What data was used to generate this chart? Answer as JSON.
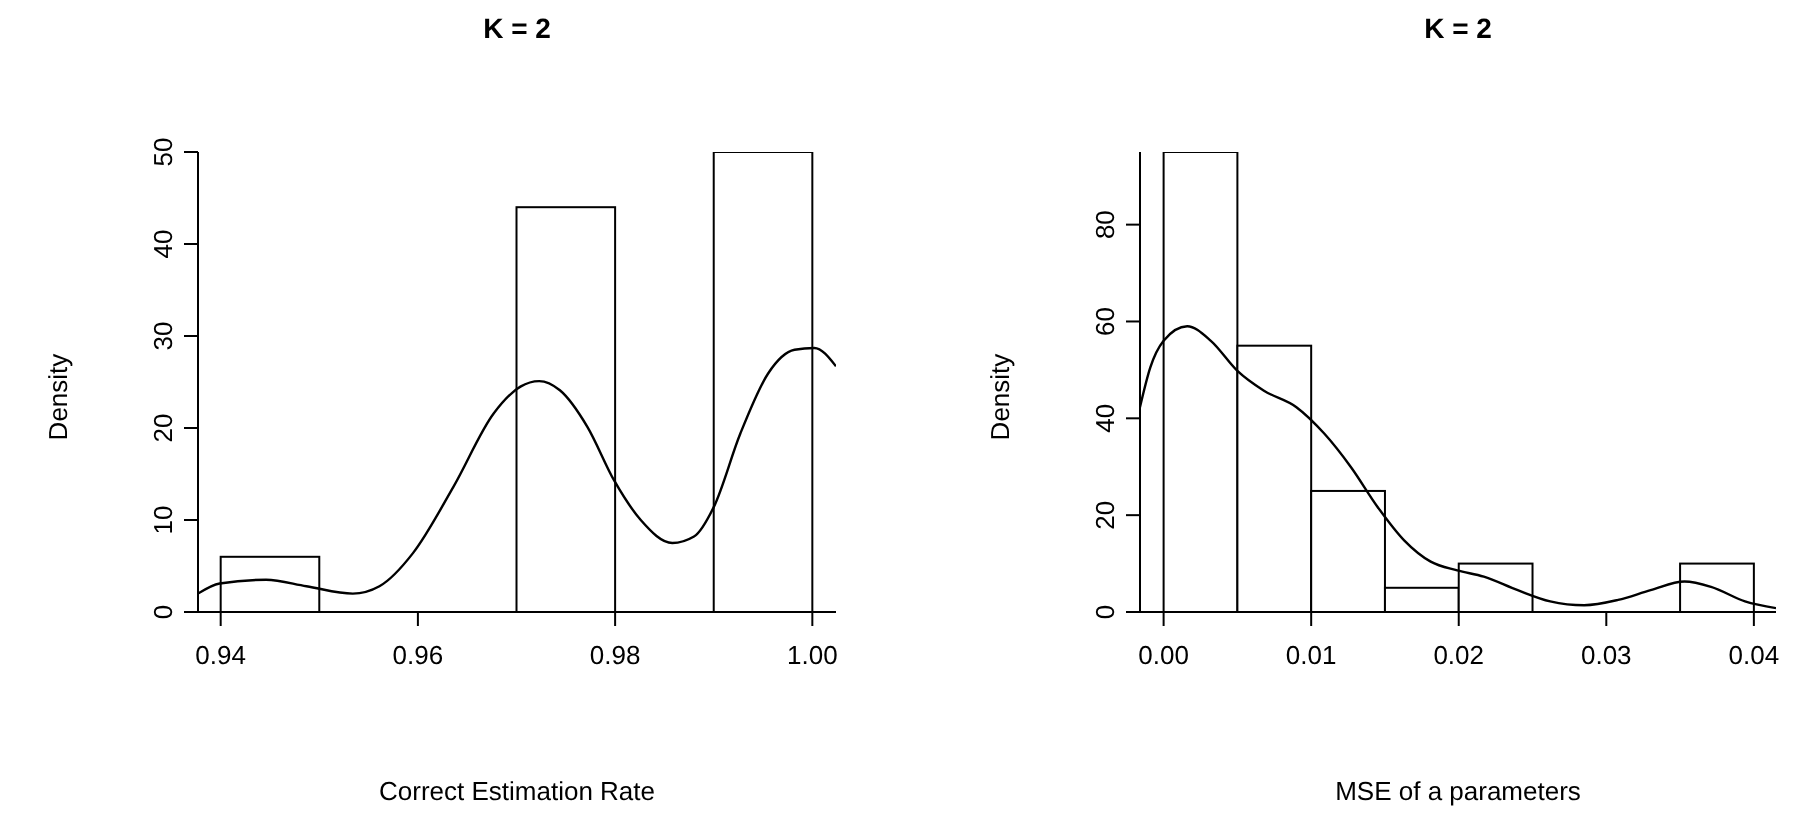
{
  "chart_data": [
    {
      "type": "histogram",
      "title": "K = 2",
      "xlabel": "Correct Estimation Rate",
      "ylabel": "Density",
      "xlim": [
        0.9377,
        1.0024
      ],
      "xticks": [
        0.94,
        0.96,
        0.98,
        {
          "value": 1,
          "label": "1.00"
        }
      ],
      "ylim": [
        0,
        50
      ],
      "yticks": [
        0,
        10,
        20,
        30,
        40,
        50
      ],
      "grid": false,
      "legend": false,
      "series": [
        {
          "type": "histogram",
          "color": "#000000",
          "bins": [
            0.94,
            0.95,
            0.96,
            0.97,
            0.98,
            0.99,
            1.0
          ],
          "values": [
            6,
            0,
            0,
            44,
            0,
            50
          ]
        },
        {
          "type": "line",
          "color": "#000000",
          "x": [
            0.9377,
            0.9399,
            0.9446,
            0.9487,
            0.9534,
            0.9561,
            0.9595,
            0.9636,
            0.9677,
            0.9704,
            0.9723,
            0.9744,
            0.9772,
            0.9799,
            0.9826,
            0.9858,
            0.988,
            0.99,
            0.9927,
            0.9955,
            0.9982,
            1.0002,
            1.0024
          ],
          "values": [
            2.0,
            3.1,
            3.5,
            2.8,
            2.0,
            2.8,
            6.4,
            13.6,
            21.6,
            24.5,
            25.1,
            24.1,
            20.1,
            14.3,
            10.0,
            7.5,
            8.2,
            11.4,
            19.4,
            25.9,
            28.5,
            28.7,
            26.7
          ]
        }
      ]
    },
    {
      "type": "histogram",
      "title": "K = 2",
      "xlabel": "MSE of a parameters",
      "ylabel": "Density",
      "xlim": [
        -0.0016,
        0.0415
      ],
      "xticks": [
        {
          "value": 0,
          "label": "0.00"
        },
        0.01,
        0.02,
        0.03,
        0.04
      ],
      "ylim": [
        0,
        95
      ],
      "yticks": [
        0,
        20,
        40,
        60,
        80
      ],
      "grid": false,
      "legend": false,
      "series": [
        {
          "type": "histogram",
          "color": "#000000",
          "bins": [
            0,
            0.005,
            0.01,
            0.015,
            0.02,
            0.025,
            0.03,
            0.035,
            0.04
          ],
          "values": [
            95,
            55,
            25,
            5,
            10,
            0,
            0,
            10
          ]
        },
        {
          "type": "line",
          "color": "#000000",
          "x": [
            -0.0016,
            -0.0009,
            0,
            0.0016,
            0.0032,
            0.005,
            0.0068,
            0.009,
            0.0109,
            0.0127,
            0.0145,
            0.0163,
            0.0181,
            0.0199,
            0.0217,
            0.024,
            0.0262,
            0.0285,
            0.0308,
            0.033,
            0.0353,
            0.0371,
            0.0394,
            0.0415
          ],
          "values": [
            42.3,
            50.5,
            56.0,
            59.0,
            56.0,
            49.8,
            45.7,
            42.3,
            36.8,
            29.9,
            21.7,
            14.8,
            10.4,
            8.6,
            7.3,
            4.5,
            2.2,
            1.4,
            2.5,
            4.5,
            6.3,
            5.2,
            2.2,
            0.8
          ]
        }
      ]
    }
  ]
}
